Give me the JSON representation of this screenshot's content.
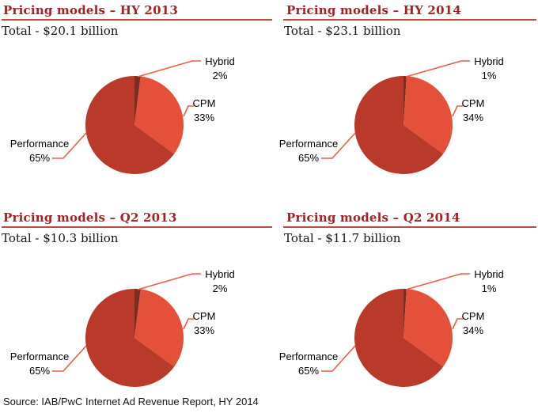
{
  "palette": {
    "title_red": "#a62121",
    "rule_red": "#bf4a42",
    "performance_red": "#b93a2a",
    "cpm_red": "#e5503a",
    "hybrid_dark_red": "#7a2d23",
    "leader_line": "#ee5b45",
    "text_black": "#141414"
  },
  "source_note": "Source: IAB/PwC Internet Ad Revenue Report, HY 2014",
  "chart_data": [
    {
      "type": "pie",
      "title": "Pricing models – HY 2013",
      "subtitle": "Total - $20.1 billion",
      "start_angle_deg": 0,
      "direction": "clockwise",
      "legend_position": "callout-labels",
      "slices": [
        {
          "label": "Hybrid",
          "value_pct": 2,
          "color": "#7a2d23"
        },
        {
          "label": "CPM",
          "value_pct": 33,
          "color": "#e5503a"
        },
        {
          "label": "Performance",
          "value_pct": 65,
          "color": "#b93a2a"
        }
      ]
    },
    {
      "type": "pie",
      "title": "Pricing models – HY 2014",
      "subtitle": "Total - $23.1 billion",
      "start_angle_deg": 0,
      "direction": "clockwise",
      "legend_position": "callout-labels",
      "slices": [
        {
          "label": "Hybrid",
          "value_pct": 1,
          "color": "#7a2d23"
        },
        {
          "label": "CPM",
          "value_pct": 34,
          "color": "#e5503a"
        },
        {
          "label": "Performance",
          "value_pct": 65,
          "color": "#b93a2a"
        }
      ]
    },
    {
      "type": "pie",
      "title": "Pricing models – Q2 2013",
      "subtitle": "Total - $10.3 billion",
      "start_angle_deg": 0,
      "direction": "clockwise",
      "legend_position": "callout-labels",
      "slices": [
        {
          "label": "Hybrid",
          "value_pct": 2,
          "color": "#7a2d23"
        },
        {
          "label": "CPM",
          "value_pct": 33,
          "color": "#e5503a"
        },
        {
          "label": "Performance",
          "value_pct": 65,
          "color": "#b93a2a"
        }
      ]
    },
    {
      "type": "pie",
      "title": "Pricing models – Q2 2014",
      "subtitle": "Total - $11.7 billion",
      "start_angle_deg": 0,
      "direction": "clockwise",
      "legend_position": "callout-labels",
      "slices": [
        {
          "label": "Hybrid",
          "value_pct": 1,
          "color": "#7a2d23"
        },
        {
          "label": "CPM",
          "value_pct": 34,
          "color": "#e5503a"
        },
        {
          "label": "Performance",
          "value_pct": 65,
          "color": "#b93a2a"
        }
      ]
    }
  ]
}
